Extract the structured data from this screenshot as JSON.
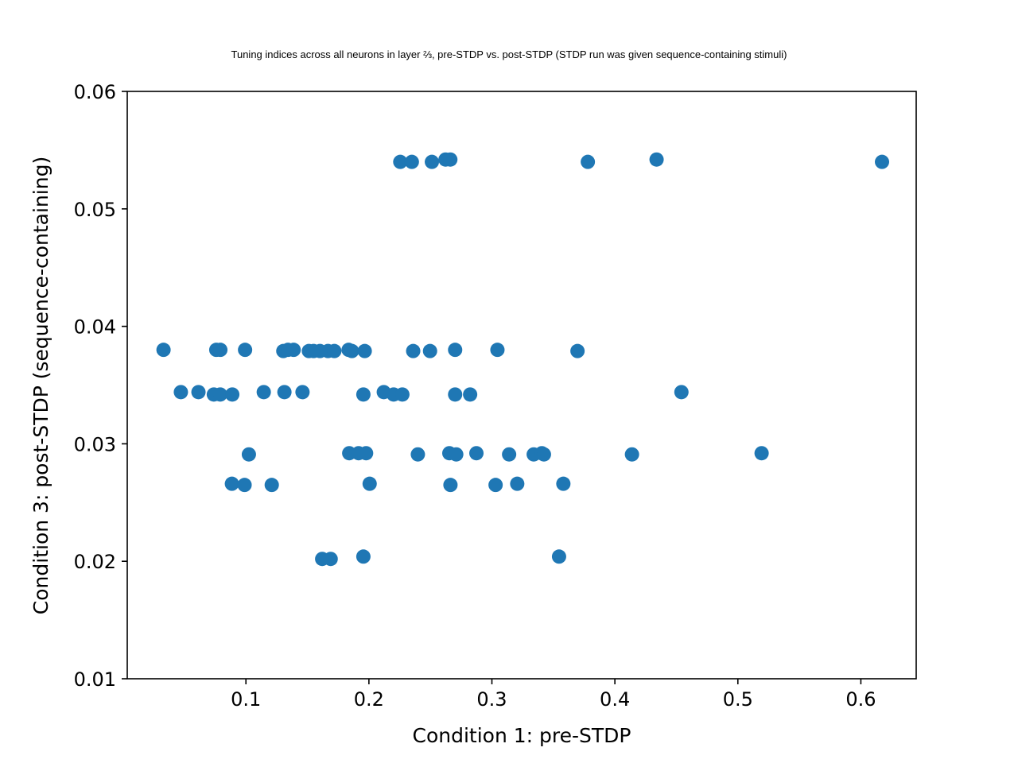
{
  "chart_data": {
    "type": "scatter",
    "title": "Tuning indices across all neurons in layer ⅔, pre-STDP vs. post-STDP (STDP run was given sequence-containing stimuli)",
    "xlabel": "Condition 1: pre-STDP",
    "ylabel": "Condition 3: post-STDP (sequence-containing)",
    "xlim": [
      0.0035,
      0.645
    ],
    "ylim": [
      0.01,
      0.06
    ],
    "xticks": [
      {
        "value": 0.1,
        "label": "0.1"
      },
      {
        "value": 0.2,
        "label": "0.2"
      },
      {
        "value": 0.3,
        "label": "0.3"
      },
      {
        "value": 0.4,
        "label": "0.4"
      },
      {
        "value": 0.5,
        "label": "0.5"
      },
      {
        "value": 0.6,
        "label": "0.6"
      }
    ],
    "yticks": [
      {
        "value": 0.01,
        "label": "0.01"
      },
      {
        "value": 0.02,
        "label": "0.02"
      },
      {
        "value": 0.03,
        "label": "0.03"
      },
      {
        "value": 0.04,
        "label": "0.04"
      },
      {
        "value": 0.05,
        "label": "0.05"
      },
      {
        "value": 0.06,
        "label": "0.06"
      }
    ],
    "grid": false,
    "color": "#1f77b4",
    "points": [
      {
        "x": 0.2255,
        "y": 0.054
      },
      {
        "x": 0.2349,
        "y": 0.054
      },
      {
        "x": 0.2512,
        "y": 0.054
      },
      {
        "x": 0.2623,
        "y": 0.0542
      },
      {
        "x": 0.2662,
        "y": 0.0542
      },
      {
        "x": 0.378,
        "y": 0.054
      },
      {
        "x": 0.4339,
        "y": 0.0542
      },
      {
        "x": 0.6172,
        "y": 0.054
      },
      {
        "x": 0.033,
        "y": 0.038
      },
      {
        "x": 0.0759,
        "y": 0.038
      },
      {
        "x": 0.0792,
        "y": 0.038
      },
      {
        "x": 0.0993,
        "y": 0.038
      },
      {
        "x": 0.1304,
        "y": 0.0379
      },
      {
        "x": 0.1342,
        "y": 0.038
      },
      {
        "x": 0.1388,
        "y": 0.038
      },
      {
        "x": 0.1512,
        "y": 0.0379
      },
      {
        "x": 0.155,
        "y": 0.0379
      },
      {
        "x": 0.1602,
        "y": 0.0379
      },
      {
        "x": 0.1667,
        "y": 0.0379
      },
      {
        "x": 0.1719,
        "y": 0.0379
      },
      {
        "x": 0.1835,
        "y": 0.038
      },
      {
        "x": 0.1862,
        "y": 0.0379
      },
      {
        "x": 0.1966,
        "y": 0.0379
      },
      {
        "x": 0.236,
        "y": 0.0379
      },
      {
        "x": 0.2497,
        "y": 0.0379
      },
      {
        "x": 0.2701,
        "y": 0.038
      },
      {
        "x": 0.3045,
        "y": 0.038
      },
      {
        "x": 0.3696,
        "y": 0.0379
      },
      {
        "x": 0.0471,
        "y": 0.0344
      },
      {
        "x": 0.0614,
        "y": 0.0344
      },
      {
        "x": 0.0739,
        "y": 0.0342
      },
      {
        "x": 0.0791,
        "y": 0.0342
      },
      {
        "x": 0.0889,
        "y": 0.0342
      },
      {
        "x": 0.1145,
        "y": 0.0344
      },
      {
        "x": 0.1313,
        "y": 0.0344
      },
      {
        "x": 0.146,
        "y": 0.0344
      },
      {
        "x": 0.1955,
        "y": 0.0342
      },
      {
        "x": 0.2121,
        "y": 0.0344
      },
      {
        "x": 0.2201,
        "y": 0.0342
      },
      {
        "x": 0.2272,
        "y": 0.0342
      },
      {
        "x": 0.2701,
        "y": 0.0342
      },
      {
        "x": 0.2823,
        "y": 0.0342
      },
      {
        "x": 0.4541,
        "y": 0.0344
      },
      {
        "x": 0.1024,
        "y": 0.0291
      },
      {
        "x": 0.184,
        "y": 0.0292
      },
      {
        "x": 0.1916,
        "y": 0.0292
      },
      {
        "x": 0.1977,
        "y": 0.0292
      },
      {
        "x": 0.2398,
        "y": 0.0291
      },
      {
        "x": 0.2654,
        "y": 0.0292
      },
      {
        "x": 0.271,
        "y": 0.0291
      },
      {
        "x": 0.2874,
        "y": 0.0292
      },
      {
        "x": 0.314,
        "y": 0.0291
      },
      {
        "x": 0.334,
        "y": 0.0291
      },
      {
        "x": 0.3406,
        "y": 0.0292
      },
      {
        "x": 0.3423,
        "y": 0.0291
      },
      {
        "x": 0.4139,
        "y": 0.0291
      },
      {
        "x": 0.5193,
        "y": 0.0292
      },
      {
        "x": 0.0886,
        "y": 0.0266
      },
      {
        "x": 0.0989,
        "y": 0.0265
      },
      {
        "x": 0.121,
        "y": 0.0265
      },
      {
        "x": 0.2006,
        "y": 0.0266
      },
      {
        "x": 0.2663,
        "y": 0.0265
      },
      {
        "x": 0.303,
        "y": 0.0265
      },
      {
        "x": 0.3206,
        "y": 0.0266
      },
      {
        "x": 0.3581,
        "y": 0.0266
      },
      {
        "x": 0.162,
        "y": 0.0202
      },
      {
        "x": 0.1689,
        "y": 0.0202
      },
      {
        "x": 0.1955,
        "y": 0.0204
      },
      {
        "x": 0.3546,
        "y": 0.0204
      }
    ]
  }
}
